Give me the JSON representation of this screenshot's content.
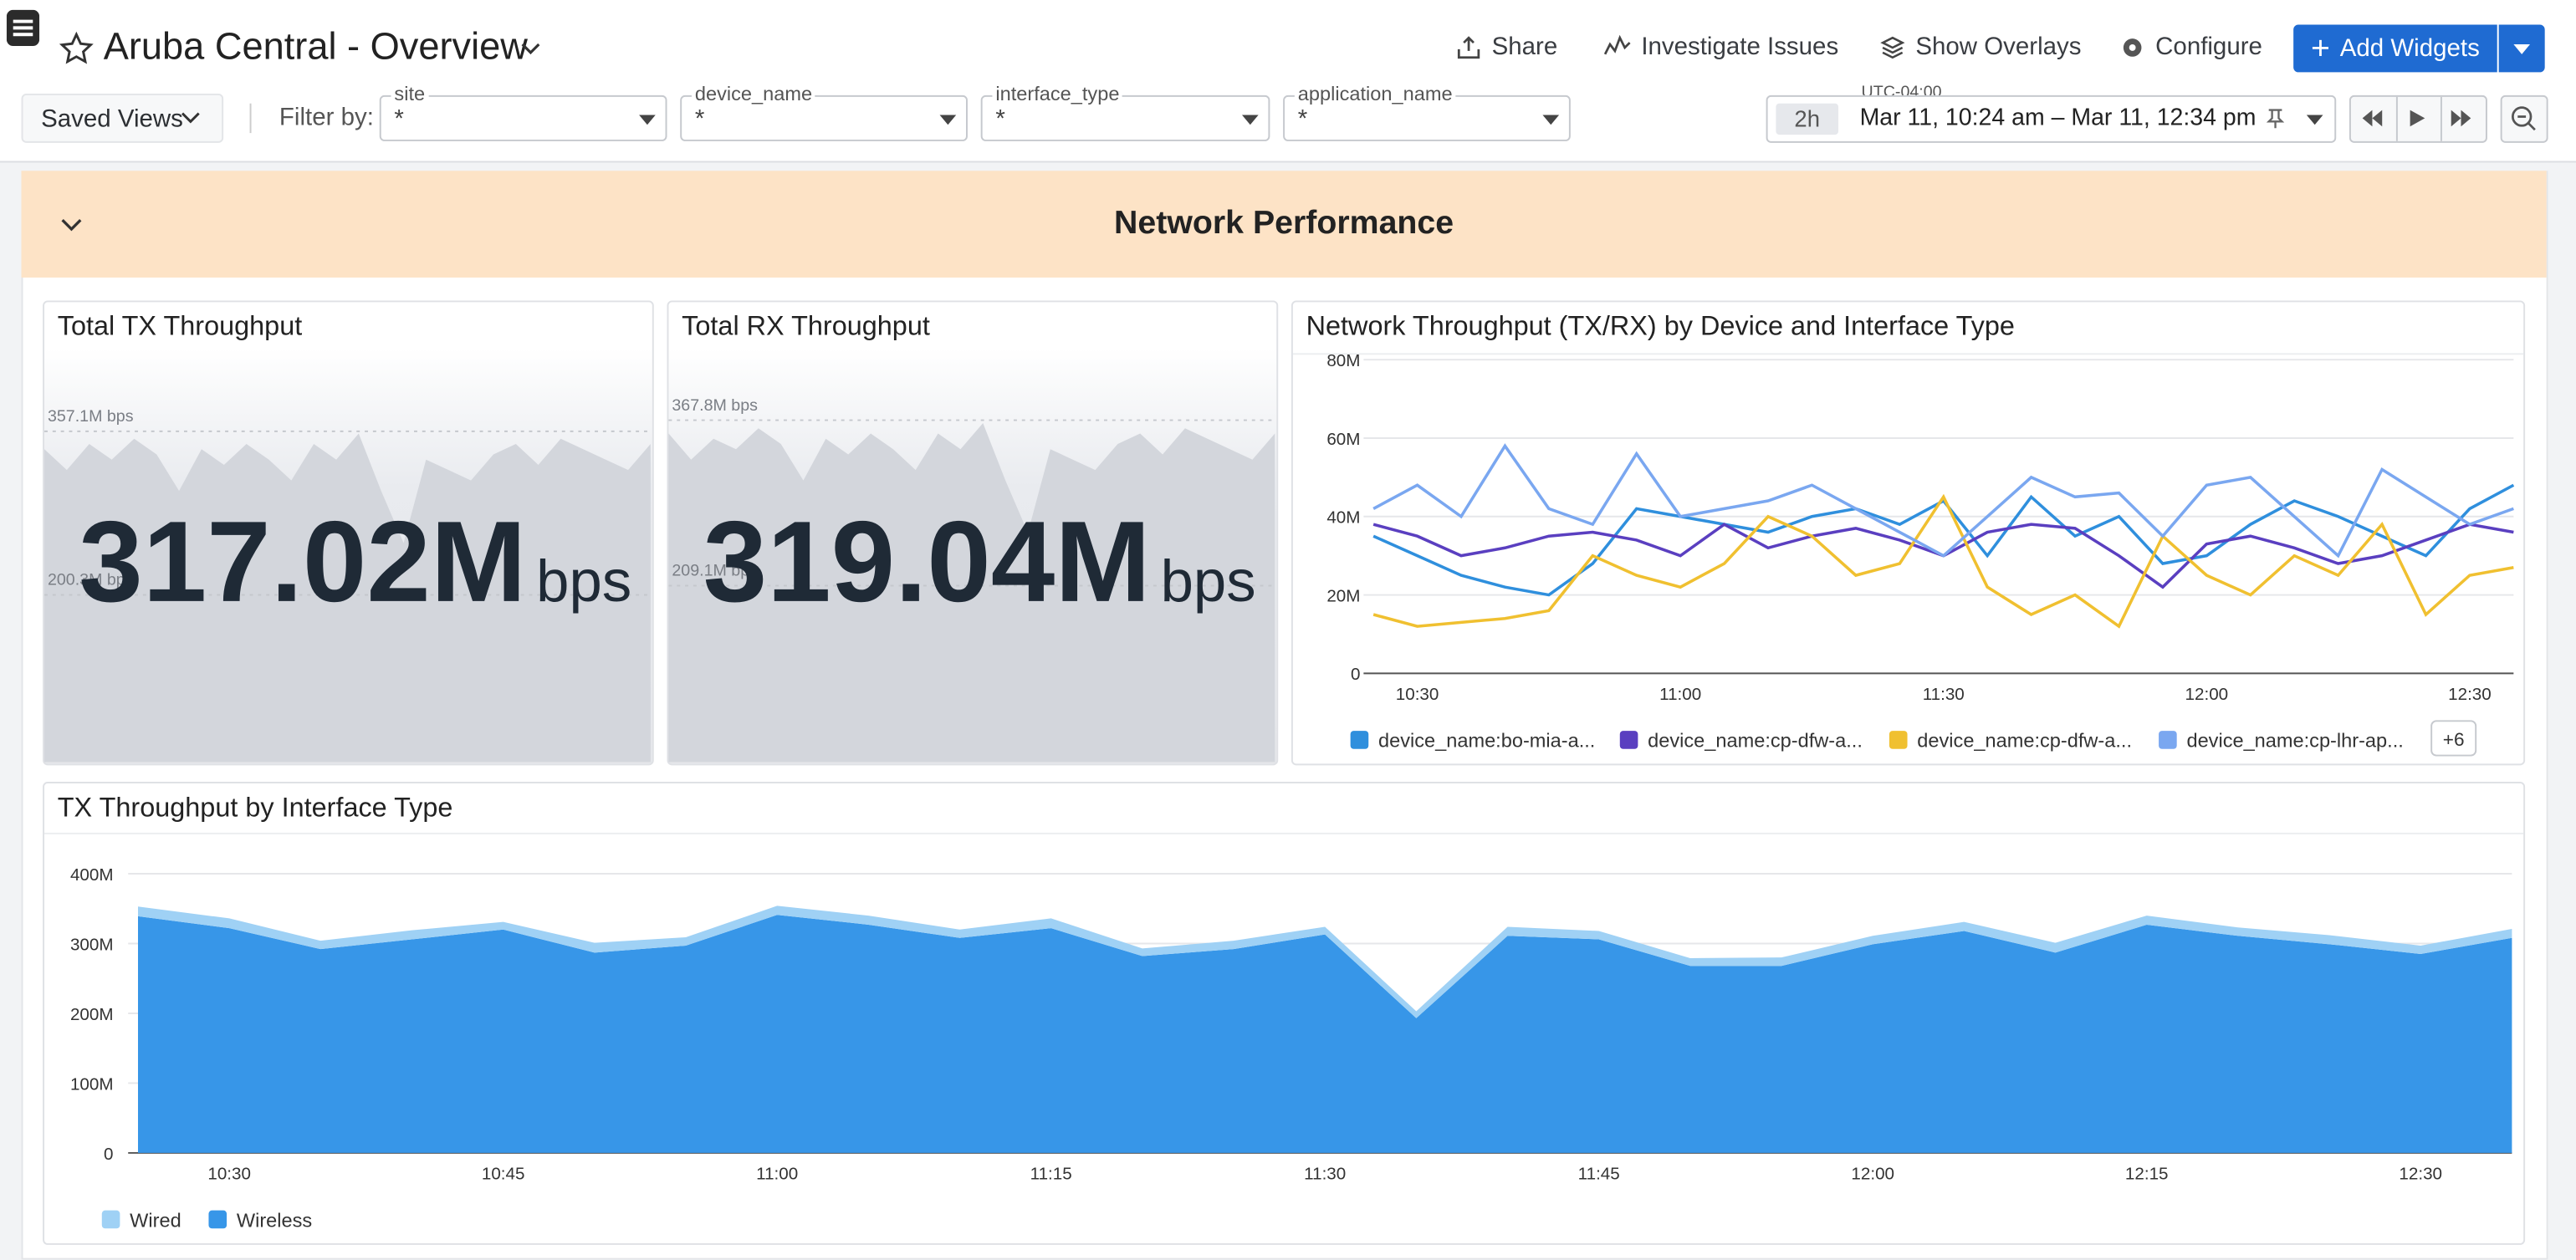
{
  "header": {
    "title": "Aruba Central - Overview",
    "actions": [
      "Share",
      "Investigate Issues",
      "Show Overlays",
      "Configure"
    ],
    "add_button": "Add Widgets"
  },
  "toolbar": {
    "saved_views": "Saved Views",
    "filter_label": "Filter by:",
    "filters": [
      {
        "name": "site",
        "value": "*"
      },
      {
        "name": "device_name",
        "value": "*"
      },
      {
        "name": "interface_type",
        "value": "*"
      },
      {
        "name": "application_name",
        "value": "*"
      }
    ],
    "timezone": "UTC-04:00",
    "span": "2h",
    "range": "Mar 11, 10:24 am – Mar 11, 12:34 pm"
  },
  "section": {
    "title": "Network Performance"
  },
  "widgets": [
    {
      "title": "Total TX Throughput",
      "value": "317.02M",
      "unit": "bps",
      "chart_data": {
        "type": "sparkline",
        "color": "#d3d6dc",
        "values": [
          340,
          320,
          345,
          330,
          350,
          335,
          300,
          340,
          325,
          345,
          330,
          310,
          345,
          330,
          355,
          300,
          250,
          330,
          320,
          310,
          335,
          345,
          325,
          350,
          340,
          330,
          320,
          345
        ],
        "ylim": [
          40,
          440
        ],
        "yticks": [
          {
            "value": 357.1,
            "label": "357.1M bps"
          },
          {
            "value": 200.3,
            "label": "200.3M bps"
          }
        ]
      }
    },
    {
      "title": "Total RX Throughput",
      "value": "319.04M",
      "unit": "bps",
      "chart_data": {
        "type": "sparkline",
        "color": "#d3d6dc",
        "values": [
          355,
          330,
          350,
          340,
          360,
          345,
          310,
          350,
          335,
          355,
          340,
          320,
          355,
          340,
          365,
          310,
          260,
          340,
          330,
          320,
          345,
          355,
          335,
          360,
          350,
          340,
          330,
          355
        ],
        "ylim": [
          40,
          440
        ],
        "yticks": [
          {
            "value": 367.8,
            "label": "367.8M bps"
          },
          {
            "value": 209.1,
            "label": "209.1M bps"
          }
        ]
      }
    },
    {
      "title": "Network Throughput (TX/RX) by Device and Interface Type",
      "chart_data": {
        "type": "line",
        "categories": [
          null,
          "10:30",
          null,
          null,
          null,
          null,
          null,
          "11:00",
          null,
          null,
          null,
          null,
          null,
          "11:30",
          null,
          null,
          null,
          null,
          null,
          "12:00",
          null,
          null,
          null,
          null,
          null,
          "12:30",
          null
        ],
        "ylim": [
          0,
          80
        ],
        "yticks": [
          0,
          {
            "value": 20,
            "label": "20M"
          },
          {
            "value": 40,
            "label": "40M"
          },
          {
            "value": 60,
            "label": "60M"
          },
          {
            "value": 80,
            "label": "80M"
          }
        ],
        "grid": true,
        "more_label": "+6",
        "series": [
          {
            "name": "device_name:bo-mia-a...",
            "color": "#2f8fdd",
            "values": [
              35,
              30,
              25,
              22,
              20,
              28,
              42,
              40,
              38,
              36,
              40,
              42,
              38,
              44,
              30,
              45,
              35,
              40,
              28,
              30,
              38,
              44,
              40,
              35,
              30,
              42,
              48
            ]
          },
          {
            "name": "device_name:cp-dfw-a...",
            "color": "#5a3fc0",
            "values": [
              38,
              35,
              30,
              32,
              35,
              36,
              34,
              30,
              38,
              32,
              35,
              37,
              34,
              30,
              36,
              38,
              37,
              30,
              22,
              33,
              35,
              32,
              28,
              30,
              34,
              38,
              36
            ]
          },
          {
            "name": "device_name:cp-dfw-a...",
            "color": "#f0c030",
            "values": [
              15,
              12,
              13,
              14,
              16,
              30,
              25,
              22,
              28,
              40,
              35,
              25,
              28,
              45,
              22,
              15,
              20,
              12,
              35,
              25,
              20,
              30,
              25,
              38,
              15,
              25,
              27
            ]
          },
          {
            "name": "device_name:cp-lhr-ap...",
            "color": "#7aa7f0",
            "values": [
              42,
              48,
              40,
              58,
              42,
              38,
              56,
              40,
              42,
              44,
              48,
              42,
              36,
              30,
              40,
              50,
              45,
              46,
              35,
              48,
              50,
              40,
              30,
              52,
              45,
              38,
              42
            ]
          }
        ]
      }
    },
    {
      "title": "TX Throughput by Interface Type",
      "chart_data": {
        "type": "stacked-area",
        "categories": [
          null,
          "10:30",
          null,
          null,
          "10:45",
          null,
          null,
          "11:00",
          null,
          null,
          "11:15",
          null,
          null,
          "11:30",
          null,
          null,
          "11:45",
          null,
          null,
          "12:00",
          null,
          null,
          "12:15",
          null,
          null,
          "12:30",
          null
        ],
        "ylim": [
          0,
          400
        ],
        "yticks": [
          0,
          {
            "value": 100,
            "label": "100M"
          },
          {
            "value": 200,
            "label": "200M"
          },
          {
            "value": 300,
            "label": "300M"
          },
          {
            "value": 400,
            "label": "400M"
          }
        ],
        "grid": true,
        "series": [
          {
            "name": "Wired",
            "color": "#9fd1f5",
            "values": [
              14,
              14,
              12,
              13,
              11,
              14,
              12,
              13,
              13,
              12,
              14,
              11,
              12,
              11,
              10,
              13,
              12,
              11,
              12,
              12,
              13,
              14,
              13,
              12,
              13,
              12,
              13
            ]
          },
          {
            "name": "Wireless",
            "color": "#3796e8",
            "values": [
              339,
              322,
              292,
              306,
              320,
              287,
              297,
              341,
              327,
              308,
              322,
              282,
              292,
              313,
              193,
              311,
              306,
              268,
              268,
              299,
              318,
              287,
              327,
              311,
              299,
              285,
              308
            ]
          }
        ]
      }
    }
  ]
}
